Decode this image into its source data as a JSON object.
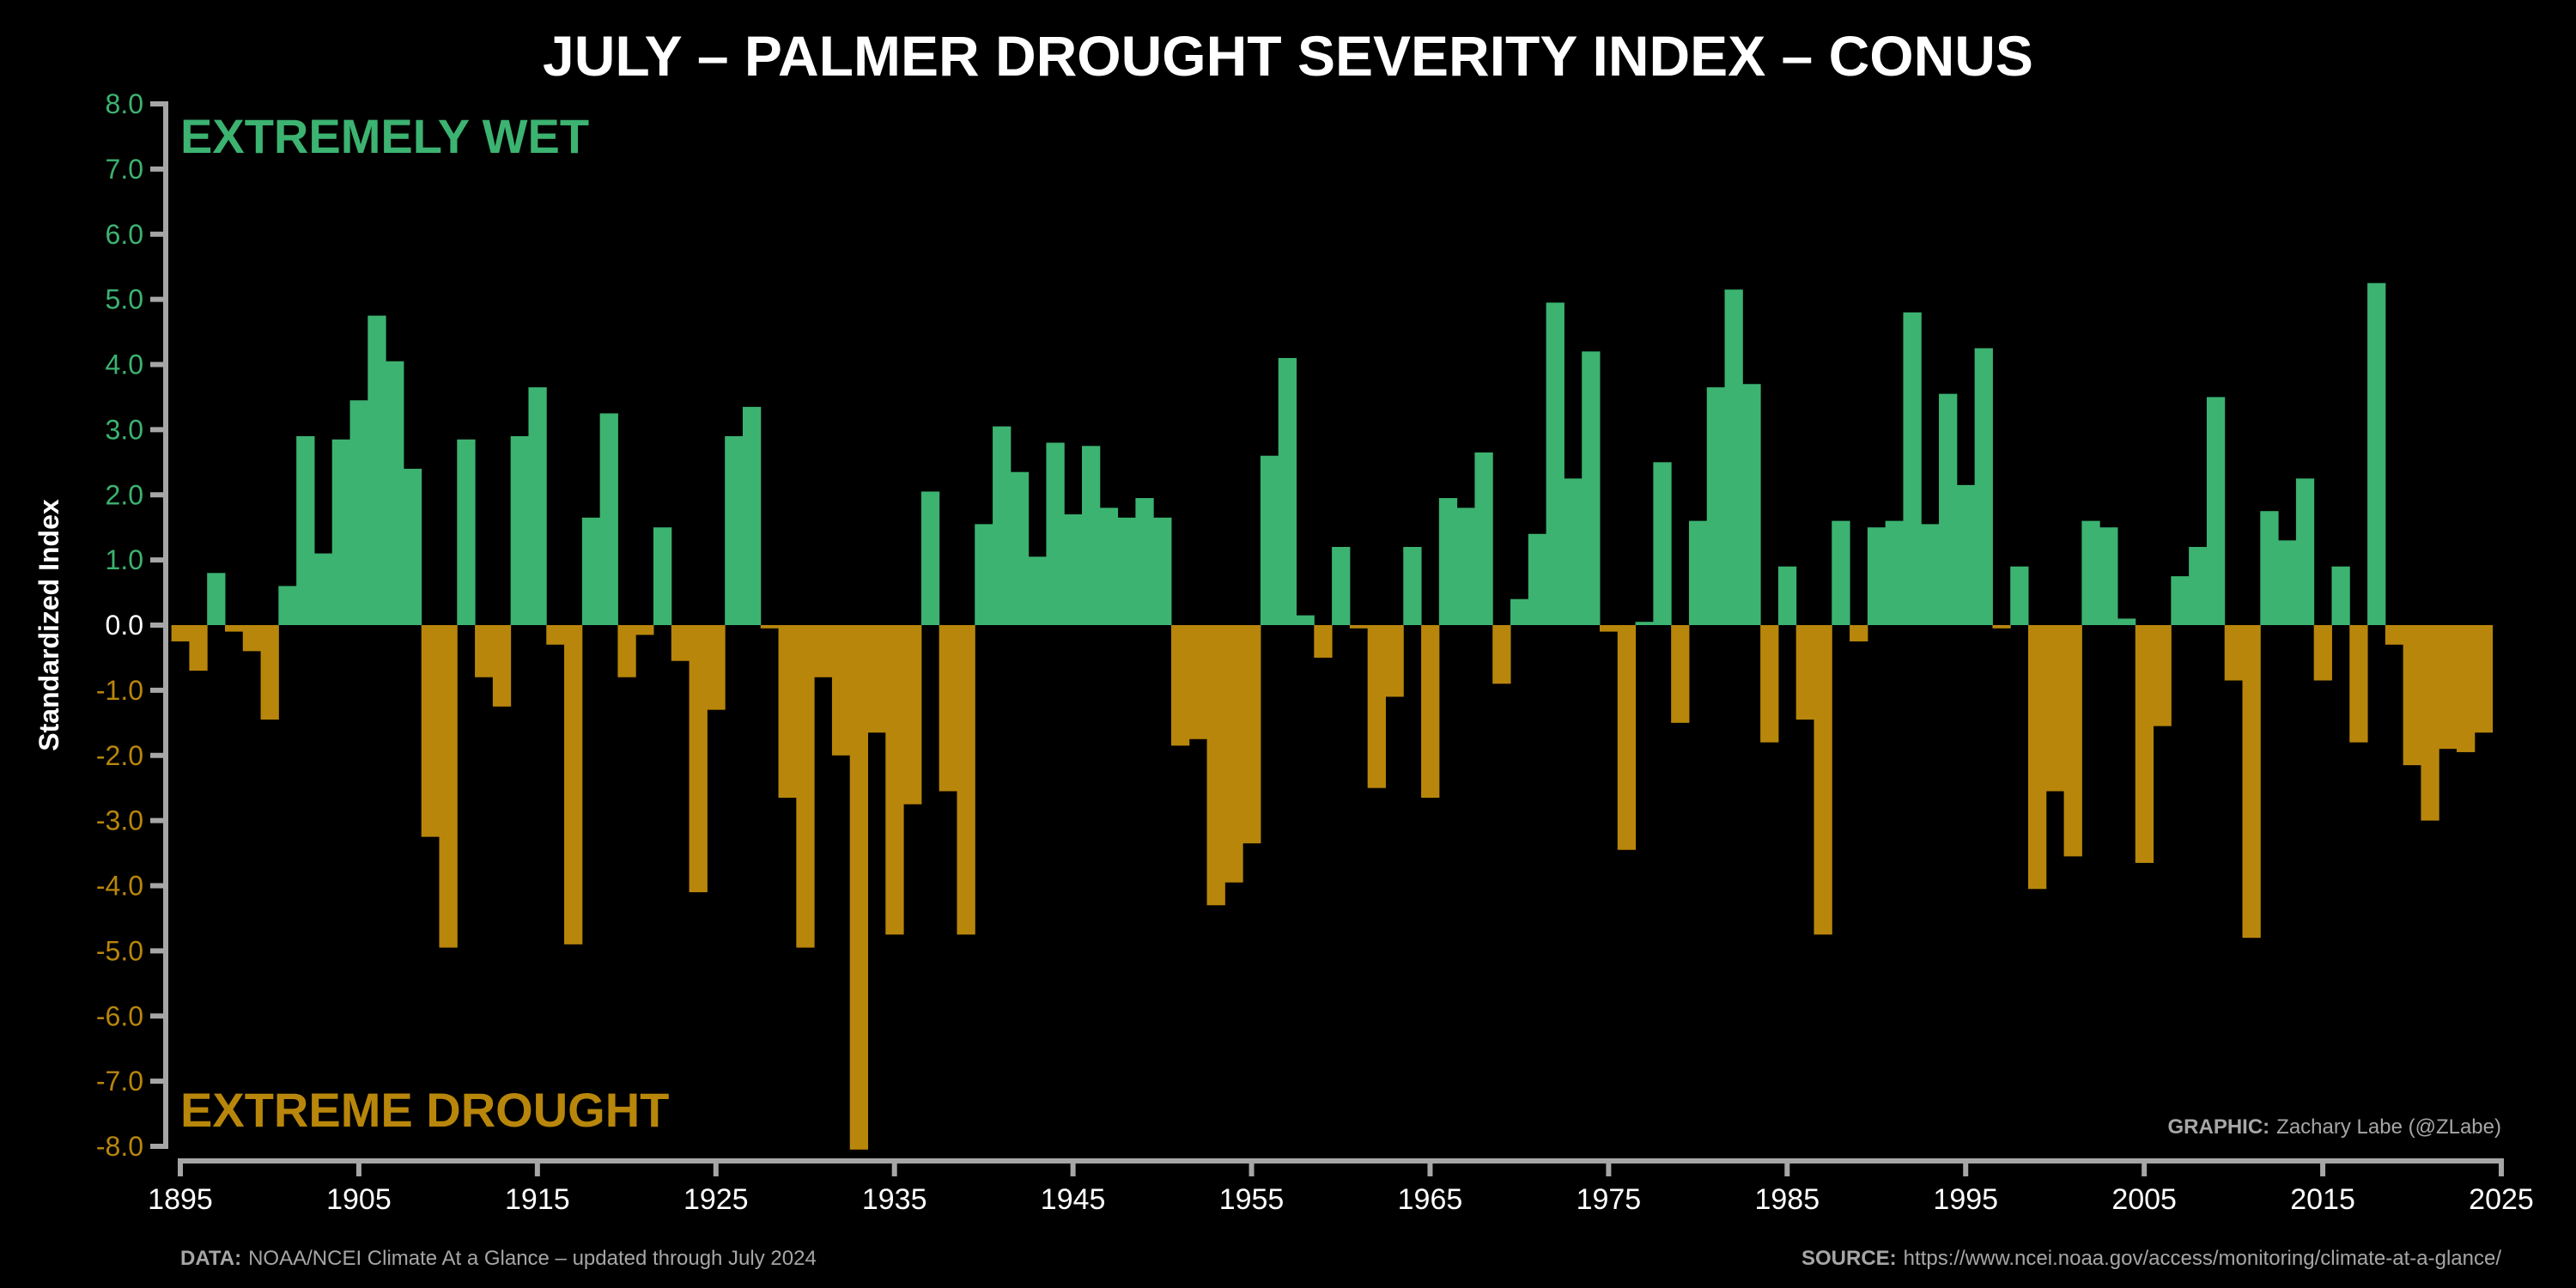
{
  "chart_data": {
    "type": "bar",
    "title": "JULY – PALMER DROUGHT SEVERITY INDEX – CONUS",
    "xlabel": "",
    "ylabel": "Standardized Index",
    "ylim": [
      -8,
      8
    ],
    "xlim": [
      1895,
      2025
    ],
    "yticks": [
      "8.0",
      "7.0",
      "6.0",
      "5.0",
      "4.0",
      "3.0",
      "2.0",
      "1.0",
      "0.0",
      "-1.0",
      "-2.0",
      "-3.0",
      "-4.0",
      "-5.0",
      "-6.0",
      "-7.0",
      "-8.0"
    ],
    "ytick_values": [
      8,
      7,
      6,
      5,
      4,
      3,
      2,
      1,
      0,
      -1,
      -2,
      -3,
      -4,
      -5,
      -6,
      -7,
      -8
    ],
    "xticks": [
      "1895",
      "1905",
      "1915",
      "1925",
      "1935",
      "1945",
      "1955",
      "1965",
      "1975",
      "1985",
      "1995",
      "2005",
      "2015",
      "2025"
    ],
    "xtick_values": [
      1895,
      1905,
      1915,
      1925,
      1935,
      1945,
      1955,
      1965,
      1975,
      1985,
      1995,
      2005,
      2015,
      2025
    ],
    "grid": false,
    "colors": {
      "positive": "#3cb371",
      "negative": "#b8860b",
      "axis": "#a6a6a6",
      "zero_label": "#ffffff"
    },
    "annotations": {
      "top": "EXTREMELY WET",
      "bottom": "EXTREME DROUGHT"
    },
    "start_year": 1895,
    "values": [
      -0.25,
      -0.7,
      0.8,
      -0.1,
      -0.4,
      -1.45,
      0.6,
      2.9,
      1.1,
      2.85,
      3.45,
      4.75,
      4.05,
      2.4,
      -3.25,
      -4.95,
      2.85,
      -0.8,
      -1.25,
      2.9,
      3.65,
      -0.3,
      -4.9,
      1.65,
      3.25,
      -0.8,
      -0.15,
      1.5,
      -0.55,
      -4.1,
      -1.3,
      2.9,
      3.35,
      -0.05,
      -2.65,
      -4.95,
      -0.8,
      -2.0,
      -8.05,
      -1.65,
      -4.75,
      -2.75,
      2.05,
      -2.55,
      -4.75,
      1.55,
      3.05,
      2.35,
      1.05,
      2.8,
      1.7,
      2.75,
      1.8,
      1.65,
      1.95,
      1.65,
      -1.85,
      -1.75,
      -4.3,
      -3.95,
      -3.35,
      2.6,
      4.1,
      0.15,
      -0.5,
      1.2,
      -0.05,
      -2.5,
      -1.1,
      1.2,
      -2.65,
      1.95,
      1.8,
      2.65,
      -0.9,
      0.4,
      1.4,
      4.95,
      2.25,
      4.2,
      -0.1,
      -3.45,
      0.05,
      2.5,
      -1.5,
      1.6,
      3.65,
      5.15,
      3.7,
      -1.8,
      0.9,
      -1.45,
      -4.75,
      1.6,
      -0.25,
      1.5,
      1.6,
      4.8,
      1.55,
      3.55,
      2.15,
      4.25,
      -0.05,
      0.9,
      -4.05,
      -2.55,
      -3.55,
      1.6,
      1.5,
      0.1,
      -3.65,
      -1.55,
      0.75,
      1.2,
      3.5,
      -0.85,
      -4.8,
      1.75,
      1.3,
      2.25,
      -0.85,
      0.9,
      -1.8,
      5.25,
      -0.3,
      -2.15,
      -3.0,
      -1.9,
      -1.95,
      -1.65
    ]
  },
  "footer": {
    "data_label": "DATA:",
    "data_text": "NOAA/NCEI Climate At a Glance – updated through July 2024",
    "source_label": "SOURCE:",
    "source_text": "https://www.ncei.noaa.gov/access/monitoring/climate-at-a-glance/",
    "graphic_label": "GRAPHIC:",
    "graphic_text": "Zachary Labe (@ZLabe)"
  }
}
